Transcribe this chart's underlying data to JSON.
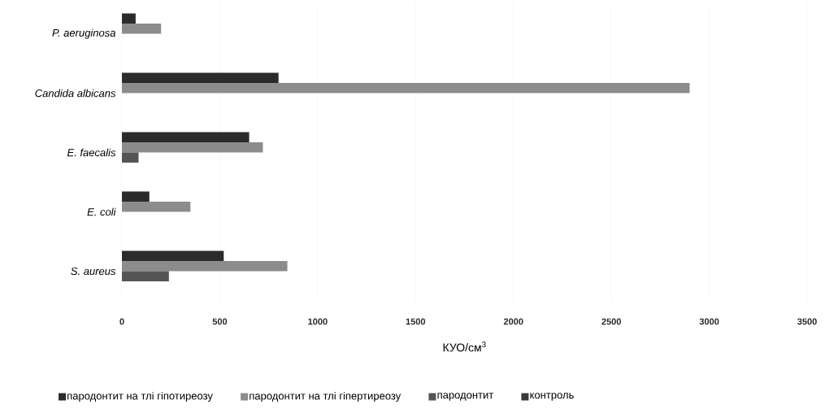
{
  "chart_data": {
    "type": "bar",
    "orientation": "horizontal",
    "xlabel": "КУО/см$^{3}$",
    "categories": [
      "P. aeruginosa",
      "Candida albicans",
      "E. faecalis",
      "E. coli",
      "S. aureus"
    ],
    "series": [
      {
        "name": "пародонтит на тлі гіпотиреозу",
        "color": "#2b2b2b",
        "values": [
          70,
          800,
          650,
          140,
          520
        ]
      },
      {
        "name": "пародонтит на тлі гіпертиреозу",
        "color": "#8c8c8c",
        "values": [
          200,
          2900,
          720,
          350,
          845
        ]
      },
      {
        "name": "пародонтит",
        "color": "#555555",
        "values": [
          null,
          null,
          85,
          null,
          240
        ]
      },
      {
        "name": "контроль",
        "color": "#3a3a3a",
        "values": [
          null,
          null,
          null,
          null,
          null
        ]
      }
    ],
    "xlim": [
      0,
      3500
    ],
    "xticks": [
      0,
      500,
      1000,
      1500,
      2000,
      2500,
      3000,
      3500
    ],
    "grid": "x",
    "legend": "bottom"
  }
}
